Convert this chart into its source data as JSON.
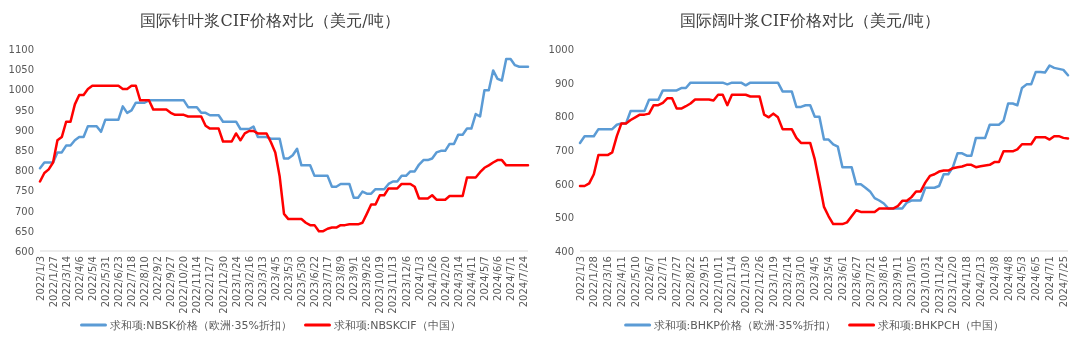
{
  "chart_data": [
    {
      "type": "line",
      "title": "国际针叶浆CIF价格对比（美元/吨）",
      "categories": [
        "2022/1/3",
        null,
        null,
        "2022/1/27",
        null,
        null,
        "2022/3/14",
        null,
        null,
        "2022/4/6",
        null,
        null,
        "2022/5/4",
        null,
        null,
        "2022/5/31",
        null,
        null,
        "2022/6/23",
        null,
        null,
        "2022/7/18",
        null,
        null,
        "2022/8/10",
        null,
        null,
        "2022/9/2",
        null,
        null,
        "2022/9/27",
        null,
        null,
        "2022/10/20",
        null,
        null,
        "2022/11/14",
        null,
        null,
        "2022/12/7",
        null,
        null,
        "2022/12/30",
        null,
        null,
        "2023/1/24",
        null,
        null,
        "2023/2/16",
        null,
        null,
        "2023/3/13",
        null,
        null,
        "2023/4/5",
        null,
        null,
        "2023/5/3",
        null,
        null,
        "2023/5/30",
        null,
        null,
        "2023/6/22",
        null,
        null,
        "2023/7/17",
        null,
        null,
        "2023/8/9",
        null,
        null,
        "2023/9/1",
        null,
        null,
        "2023/9/26",
        null,
        null,
        "2023/10/19",
        null,
        null,
        "2023/11/13",
        null,
        null,
        "2023/12/6",
        null,
        null,
        "2024/1/3",
        null,
        null,
        "2024/1/26",
        null,
        null,
        "2024/2/20",
        null,
        null,
        "2024/3/14",
        null,
        null,
        "2024/4/11",
        null,
        null,
        "2024/5/7",
        null,
        null,
        "2024/6/6",
        null,
        null,
        "2024/7/1",
        null,
        null,
        "2024/7/24",
        null
      ],
      "series": [
        {
          "name": "求和项:NBSK价格（欧洲·35%折扣）",
          "color": "#5b9bd5",
          "values": [
            805,
            819,
            819,
            819,
            844,
            844,
            861,
            861,
            874,
            882,
            882,
            909,
            909,
            909,
            895,
            925,
            925,
            925,
            925,
            958,
            942,
            948,
            967,
            967,
            967,
            973,
            973,
            973,
            973,
            973,
            973,
            973,
            973,
            973,
            956,
            956,
            956,
            942,
            942,
            936,
            936,
            936,
            920,
            920,
            920,
            920,
            902,
            902,
            902,
            908,
            882,
            882,
            882,
            878,
            878,
            878,
            829,
            829,
            837,
            853,
            812,
            812,
            812,
            786,
            786,
            786,
            786,
            759,
            759,
            766,
            766,
            766,
            732,
            732,
            747,
            742,
            742,
            753,
            753,
            753,
            766,
            772,
            772,
            786,
            786,
            797,
            797,
            814,
            825,
            825,
            829,
            844,
            848,
            848,
            865,
            865,
            888,
            888,
            903,
            903,
            939,
            933,
            998,
            998,
            1047,
            1026,
            1022,
            1075,
            1075,
            1060,
            1056,
            1056,
            1056
          ]
        },
        {
          "name": "求和项:NBSKCIF（中国）",
          "color": "#ff0000",
          "values": [
            772,
            793,
            802,
            819,
            874,
            882,
            920,
            920,
            963,
            986,
            986,
            1001,
            1009,
            1009,
            1009,
            1009,
            1009,
            1009,
            1009,
            1001,
            1001,
            1009,
            1009,
            973,
            973,
            973,
            950,
            950,
            950,
            950,
            942,
            937,
            937,
            937,
            933,
            933,
            933,
            933,
            910,
            903,
            903,
            903,
            871,
            871,
            871,
            891,
            874,
            891,
            897,
            897,
            891,
            891,
            891,
            869,
            844,
            785,
            692,
            679,
            679,
            679,
            679,
            670,
            664,
            664,
            649,
            649,
            655,
            658,
            658,
            664,
            664,
            666,
            666,
            666,
            670,
            692,
            715,
            715,
            738,
            738,
            755,
            755,
            755,
            766,
            766,
            766,
            759,
            730,
            730,
            730,
            738,
            727,
            727,
            727,
            736,
            736,
            736,
            736,
            782,
            782,
            782,
            795,
            806,
            812,
            819,
            825,
            825,
            812,
            812,
            812,
            812,
            812,
            812
          ]
        }
      ],
      "ylim": [
        600,
        1100
      ],
      "yticks": [
        600,
        650,
        700,
        750,
        800,
        850,
        900,
        950,
        1000,
        1050,
        1100
      ],
      "legend": "bottom"
    },
    {
      "type": "line",
      "title": "国际阔叶浆CIF价格对比（美元/吨）",
      "categories": [
        "2022/1/3",
        null,
        null,
        "2022/1/28",
        null,
        null,
        "2022/3/16",
        null,
        null,
        "2022/4/11",
        null,
        null,
        "2022/5/10",
        null,
        null,
        "2022/6/7",
        null,
        null,
        "2022/7/1",
        null,
        null,
        "2022/7/27",
        null,
        null,
        "2022/8/22",
        null,
        null,
        "2022/9/15",
        null,
        null,
        "2022/10/11",
        null,
        null,
        "2022/11/4",
        null,
        null,
        "2022/11/30",
        null,
        null,
        "2022/12/26",
        null,
        null,
        "2023/1/19",
        null,
        null,
        "2023/2/14",
        null,
        null,
        "2023/3/10",
        null,
        null,
        "2023/4/5",
        null,
        null,
        "2023/5/4",
        null,
        null,
        "2023/6/1",
        null,
        null,
        "2023/6/27",
        null,
        null,
        "2023/7/21",
        null,
        null,
        "2023/8/16",
        null,
        null,
        "2023/9/11",
        null,
        null,
        "2023/10/5",
        null,
        null,
        "2023/10/31",
        null,
        null,
        "2023/11/24",
        null,
        null,
        "2023/12/20",
        null,
        null,
        "2024/1/18",
        null,
        null,
        "2024/2/13",
        null,
        null,
        "2024/3/8",
        null,
        null,
        "2024/4/8",
        null,
        null,
        "2024/5/3",
        null,
        null,
        "2024/6/5",
        null,
        null,
        "2024/7/1",
        null,
        null,
        "2024/7/25",
        null
      ],
      "series": [
        {
          "name": "求和项:BHKP价格（欧洲·35%折扣）",
          "color": "#5b9bd5",
          "values": [
            721,
            741,
            741,
            741,
            762,
            762,
            762,
            762,
            775,
            779,
            779,
            816,
            816,
            816,
            816,
            849,
            849,
            849,
            877,
            877,
            877,
            877,
            884,
            884,
            900,
            900,
            900,
            900,
            900,
            900,
            900,
            900,
            895,
            900,
            900,
            900,
            892,
            900,
            900,
            900,
            900,
            900,
            900,
            900,
            874,
            874,
            874,
            828,
            828,
            833,
            833,
            799,
            799,
            731,
            731,
            717,
            710,
            649,
            649,
            649,
            598,
            598,
            588,
            577,
            557,
            550,
            541,
            526,
            526,
            526,
            526,
            544,
            550,
            550,
            550,
            588,
            588,
            588,
            593,
            628,
            628,
            649,
            690,
            690,
            683,
            683,
            736,
            736,
            736,
            775,
            775,
            775,
            787,
            838,
            838,
            833,
            884,
            895,
            895,
            932,
            932,
            930,
            951,
            944,
            941,
            938,
            922
          ]
        },
        {
          "name": "求和项:BHKPCH（中国）",
          "color": "#ff0000",
          "values": [
            593,
            593,
            601,
            628,
            685,
            685,
            685,
            693,
            741,
            779,
            779,
            789,
            797,
            805,
            805,
            808,
            833,
            833,
            840,
            854,
            854,
            823,
            823,
            830,
            838,
            850,
            850,
            850,
            850,
            847,
            864,
            864,
            833,
            864,
            864,
            864,
            864,
            859,
            859,
            859,
            805,
            797,
            808,
            797,
            762,
            762,
            762,
            736,
            721,
            721,
            721,
            672,
            603,
            531,
            503,
            480,
            480,
            480,
            485,
            503,
            521,
            516,
            516,
            516,
            516,
            526,
            526,
            526,
            526,
            533,
            549,
            549,
            560,
            577,
            577,
            603,
            623,
            628,
            636,
            639,
            639,
            646,
            649,
            651,
            656,
            656,
            649,
            652,
            654,
            656,
            664,
            664,
            696,
            696,
            696,
            702,
            717,
            717,
            717,
            738,
            738,
            738,
            731,
            741,
            741,
            736,
            734
          ]
        }
      ],
      "ylim": [
        400,
        1000
      ],
      "yticks": [
        400,
        500,
        600,
        700,
        800,
        900,
        1000
      ],
      "legend": "bottom"
    }
  ]
}
